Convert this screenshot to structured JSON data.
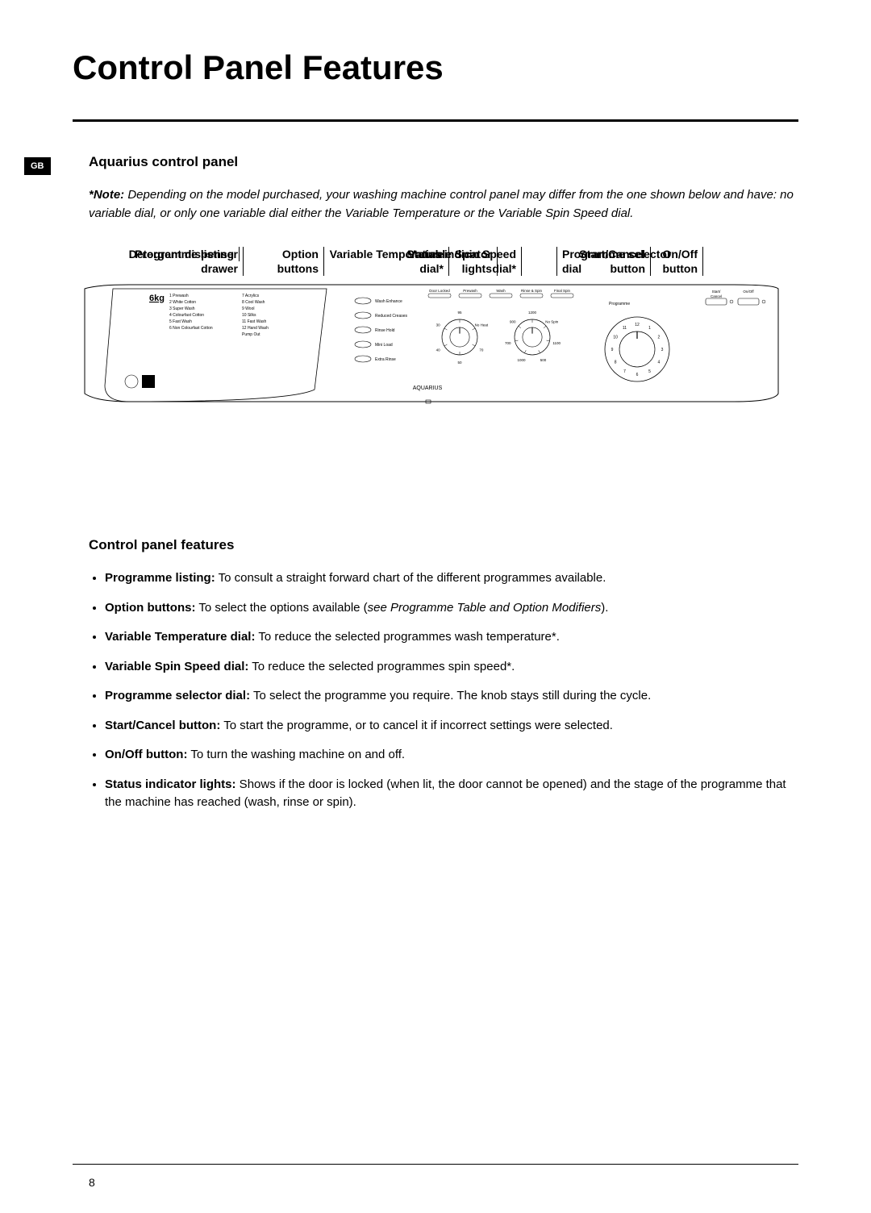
{
  "page_title": "Control Panel Features",
  "badge": "GB",
  "subtitle": "Aquarius control panel",
  "note_prefix": "*Note:",
  "note_body": " Depending on the model purchased, your washing machine control panel may differ from the one shown below and have: no variable dial, or only one variable dial either the Variable Temperature or the Variable Spin Speed dial.",
  "callouts": {
    "programme_listing": "Programme listing",
    "option_buttons_l1": "Option",
    "option_buttons_l2": "buttons",
    "status_lights_l1": "Status indicator",
    "status_lights_l2": "lights",
    "start_cancel_l1": "Start/Cancel",
    "start_cancel_l2": "button",
    "onoff_l1": "On/Off",
    "onoff_l2": "button",
    "dispenser_l1": "Detergent dispenser",
    "dispenser_l2": "drawer",
    "var_temp_l1": "Variable Temperature",
    "var_temp_l2": "dial*",
    "var_spin_l1": "Variable Spin Speed",
    "var_spin_l2": "dial*",
    "prog_sel_l1": "Programme selector",
    "prog_sel_l2": "dial"
  },
  "panel": {
    "load_label": "6kg",
    "brand": "AQUARIUS",
    "prog_col1": [
      "1   Prewash",
      "2   White Cotton",
      "3   Super Wash",
      "4   Colourfast Cotton",
      "5   Fast Wash",
      "6   Non Colourfast Cotton"
    ],
    "prog_col2": [
      "7   Acrylics",
      "8   Cool Wash",
      "9   Wool",
      "10  Silks",
      "11  Fast Wash",
      "12  Hand Wash",
      "     Pump Out"
    ],
    "options": [
      "Wash Enhance",
      "Reduced Creases",
      "Rinse Hold",
      "Mini Load",
      "Extra Rinse"
    ],
    "status_lights": [
      "Door Locked",
      "Prewash",
      "Wash",
      "Rinse & Spin",
      "Final Spin"
    ],
    "temp_dial": [
      "95",
      "No Heat",
      "70",
      "50",
      "40",
      "30"
    ],
    "spin_dial": [
      "1200",
      "No Spin",
      "1100",
      "500",
      "1000",
      "700",
      "900"
    ],
    "buttons": [
      "Start/\nCancel",
      "On/Off"
    ],
    "programme_label": "Programme"
  },
  "features_heading": "Control panel features",
  "features": [
    {
      "label": "Programme listing:",
      "text": " To consult a straight forward chart of the different programmes available."
    },
    {
      "label": "Option buttons:",
      "text": " To select the options available (",
      "italic": "see Programme Table and Option Modifiers",
      "text2": ")."
    },
    {
      "label": "Variable Temperature dial:",
      "text": " To reduce the selected programmes wash temperature*."
    },
    {
      "label": "Variable Spin Speed dial:",
      "text": " To reduce the selected programmes spin speed*."
    },
    {
      "label": "Programme selector dial:",
      "text": " To select the programme you require. The knob stays still during the cycle."
    },
    {
      "label": "Start/Cancel button:",
      "text": " To start the programme, or to cancel it if incorrect settings were selected."
    },
    {
      "label": "On/Off button:",
      "text": " To turn the washing machine on and off."
    },
    {
      "label": "Status indicator lights:",
      "text": " Shows if the door is locked (when lit, the door cannot be opened) and the stage of the programme that the machine has reached (wash, rinse or spin)."
    }
  ],
  "page_number": "8",
  "colors": {
    "text": "#000000",
    "bg": "#ffffff"
  }
}
